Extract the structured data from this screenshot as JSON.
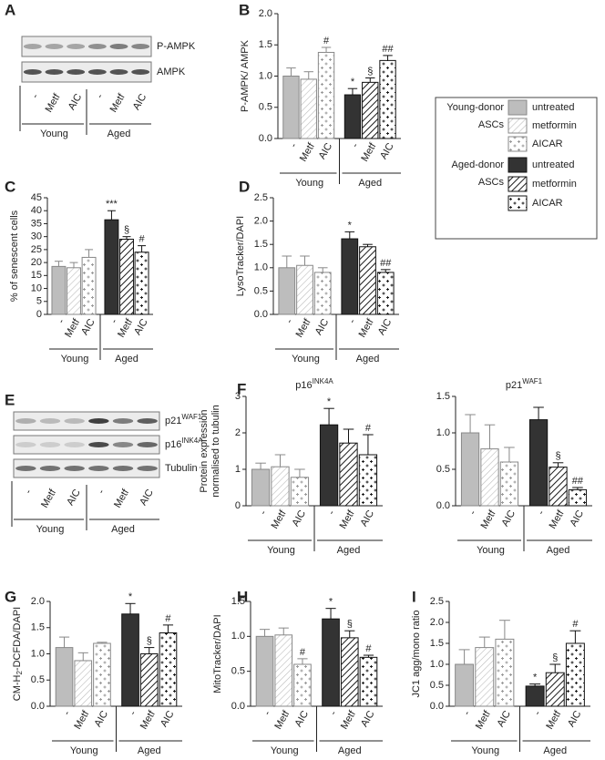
{
  "chart_data": [
    {
      "type": "bar",
      "panel": "B",
      "ylabel": "P-AMPK/ AMPK",
      "categories": [
        "-",
        "Metf",
        "AIC",
        "-",
        "Metf",
        "AIC"
      ],
      "groups": [
        "Young",
        "Aged"
      ],
      "values": [
        1.0,
        0.95,
        1.38,
        0.7,
        0.9,
        1.25
      ],
      "errors": [
        0.13,
        0.12,
        0.08,
        0.1,
        0.07,
        0.08
      ],
      "annotations": [
        null,
        null,
        "#",
        "*",
        "§",
        "##"
      ],
      "ylim": [
        0,
        2
      ],
      "yticks": [
        {
          "value": 0,
          "label": "0.0"
        },
        {
          "value": 0.5,
          "label": "0.5"
        },
        {
          "value": 1,
          "label": "1.0"
        },
        {
          "value": 1.5,
          "label": "1.5"
        },
        {
          "value": 2,
          "label": "2.0"
        }
      ]
    },
    {
      "type": "bar",
      "panel": "C",
      "ylabel": "% of senescent cells",
      "categories": [
        "-",
        "Metf",
        "AIC",
        "-",
        "Metf",
        "AIC"
      ],
      "groups": [
        "Young",
        "Aged"
      ],
      "values": [
        18.5,
        18,
        22,
        36.5,
        29,
        24
      ],
      "errors": [
        2,
        2,
        3,
        3.5,
        1,
        2.5
      ],
      "annotations": [
        null,
        null,
        null,
        "***",
        "§",
        "#"
      ],
      "ylim": [
        0,
        45
      ],
      "yticks": [
        0,
        5,
        10,
        15,
        20,
        25,
        30,
        35,
        40,
        45
      ]
    },
    {
      "type": "bar",
      "panel": "D",
      "ylabel": "LysoTracker/DAPI",
      "categories": [
        "-",
        "Metf",
        "AIC",
        "-",
        "Metf",
        "AIC"
      ],
      "groups": [
        "Young",
        "Aged"
      ],
      "values": [
        1.0,
        1.05,
        0.9,
        1.62,
        1.45,
        0.9
      ],
      "errors": [
        0.25,
        0.2,
        0.1,
        0.15,
        0.05,
        0.06
      ],
      "annotations": [
        null,
        null,
        null,
        "*",
        null,
        "##"
      ],
      "ylim": [
        0,
        2.5
      ],
      "yticks": [
        {
          "value": 0,
          "label": "0.0"
        },
        {
          "value": 0.5,
          "label": "0.5"
        },
        {
          "value": 1,
          "label": "1.0"
        },
        {
          "value": 1.5,
          "label": "1.5"
        },
        {
          "value": 2,
          "label": "2.0"
        },
        {
          "value": 2.5,
          "label": "2.5"
        }
      ]
    },
    {
      "type": "bar",
      "panel": "F",
      "title": "p16",
      "title_sup": "INK4A",
      "ylabel": [
        "Protein expression",
        "normalised to tubulin"
      ],
      "categories": [
        "-",
        "Metf",
        "AIC",
        "-",
        "Metf",
        "AIC"
      ],
      "groups": [
        "Young",
        "Aged"
      ],
      "values": [
        1.0,
        1.07,
        0.78,
        2.22,
        1.72,
        1.4
      ],
      "errors": [
        0.17,
        0.33,
        0.22,
        0.45,
        0.38,
        0.55
      ],
      "annotations": [
        null,
        null,
        null,
        "*",
        null,
        "#"
      ],
      "ylim": [
        0,
        3
      ],
      "yticks": [
        0,
        1,
        2,
        3
      ]
    },
    {
      "type": "bar",
      "title": "p21",
      "title_sup": "WAF1",
      "categories": [
        "-",
        "Metf",
        "AIC",
        "-",
        "Metf",
        "AIC"
      ],
      "groups": [
        "Young",
        "Aged"
      ],
      "values": [
        1.0,
        0.78,
        0.6,
        1.18,
        0.53,
        0.22
      ],
      "errors": [
        0.25,
        0.33,
        0.2,
        0.17,
        0.06,
        0.03
      ],
      "annotations": [
        null,
        null,
        null,
        null,
        "§",
        "##"
      ],
      "ylim": [
        0,
        1.5
      ],
      "yticks": [
        {
          "value": 0,
          "label": "0.0"
        },
        {
          "value": 0.5,
          "label": "0.5"
        },
        {
          "value": 1,
          "label": "1.0"
        },
        {
          "value": 1.5,
          "label": "1.5"
        }
      ]
    },
    {
      "type": "bar",
      "panel": "G",
      "ylabel": "CM-H",
      "ylabel_sub": "2",
      "ylabel_end": "-DCFDA/DAPI",
      "categories": [
        "-",
        "Metf",
        "AIC",
        "-",
        "Metf",
        "AIC"
      ],
      "groups": [
        "Young",
        "Aged"
      ],
      "values": [
        1.12,
        0.87,
        1.2,
        1.76,
        1.0,
        1.4
      ],
      "errors": [
        0.2,
        0.15,
        0.02,
        0.2,
        0.12,
        0.15
      ],
      "annotations": [
        null,
        null,
        null,
        "*",
        "§",
        "#"
      ],
      "ylim": [
        0,
        2
      ],
      "yticks": [
        {
          "value": 0,
          "label": "0.0"
        },
        {
          "value": 0.5,
          "label": "0.5"
        },
        {
          "value": 1,
          "label": "1.0"
        },
        {
          "value": 1.5,
          "label": "1.5"
        },
        {
          "value": 2,
          "label": "2.0"
        }
      ]
    },
    {
      "type": "bar",
      "panel": "H",
      "ylabel": "MitoTracker/DAPI",
      "categories": [
        "-",
        "Metf",
        "AIC",
        "-",
        "Metf",
        "AIC"
      ],
      "groups": [
        "Young",
        "Aged"
      ],
      "values": [
        1.0,
        1.02,
        0.6,
        1.25,
        0.98,
        0.7
      ],
      "errors": [
        0.1,
        0.1,
        0.08,
        0.15,
        0.1,
        0.03
      ],
      "annotations": [
        null,
        null,
        "#",
        "*",
        "§",
        "#"
      ],
      "ylim": [
        0,
        1.5
      ],
      "yticks": [
        {
          "value": 0,
          "label": "0.0"
        },
        {
          "value": 0.5,
          "label": "0.5"
        },
        {
          "value": 1,
          "label": "1.0"
        },
        {
          "value": 1.5,
          "label": "1.5"
        }
      ]
    },
    {
      "type": "bar",
      "panel": "I",
      "ylabel": "JC1 agg/mono ratio",
      "categories": [
        "-",
        "Metf",
        "AIC",
        "-",
        "Metf",
        "AIC"
      ],
      "groups": [
        "Young",
        "Aged"
      ],
      "values": [
        1.0,
        1.4,
        1.6,
        0.48,
        0.8,
        1.5
      ],
      "errors": [
        0.35,
        0.25,
        0.45,
        0.05,
        0.2,
        0.3
      ],
      "annotations": [
        null,
        null,
        null,
        "*",
        "§",
        "#"
      ],
      "ylim": [
        0,
        2.5
      ],
      "yticks": [
        {
          "value": 0,
          "label": "0.0"
        },
        {
          "value": 0.5,
          "label": "0.5"
        },
        {
          "value": 1,
          "label": "1.0"
        },
        {
          "value": 1.5,
          "label": "1.5"
        },
        {
          "value": 2,
          "label": "2.0"
        },
        {
          "value": 2.5,
          "label": "2.5"
        }
      ]
    }
  ],
  "legend": {
    "groups": [
      {
        "label": [
          "Young-donor",
          "ASCs"
        ],
        "items": [
          {
            "name": "untreated",
            "color": "#bdbdbd"
          },
          {
            "name": "metformin",
            "color": "#bdbdbd",
            "pattern": "hatch"
          },
          {
            "name": "AICAR",
            "color": "#999999",
            "pattern": "plus"
          }
        ]
      },
      {
        "label": [
          "Aged-donor",
          "ASCs"
        ],
        "items": [
          {
            "name": "untreated",
            "color": "#333333"
          },
          {
            "name": "metformin",
            "color": "#1a1a1a",
            "pattern": "hatch"
          },
          {
            "name": "AICAR",
            "color": "#1a1a1a",
            "pattern": "plus"
          }
        ]
      }
    ]
  },
  "blots": [
    {
      "panel": "A",
      "rows": [
        {
          "text": "P-AMPK"
        },
        {
          "text": "AMPK"
        }
      ],
      "lanes": [
        "-",
        "Metf",
        "AIC",
        "-",
        "Metf",
        "AIC"
      ],
      "groups": [
        "Young",
        "Aged"
      ]
    },
    {
      "panel": "E",
      "rows": [
        {
          "text": "p21",
          "sup": "WAF1"
        },
        {
          "text": "p16",
          "sup": "INK4A"
        },
        {
          "text": "Tubulin"
        }
      ],
      "lanes": [
        "-",
        "Metf",
        "AIC",
        "-",
        "Metf",
        "AIC"
      ],
      "groups": [
        "Young",
        "Aged"
      ]
    }
  ]
}
